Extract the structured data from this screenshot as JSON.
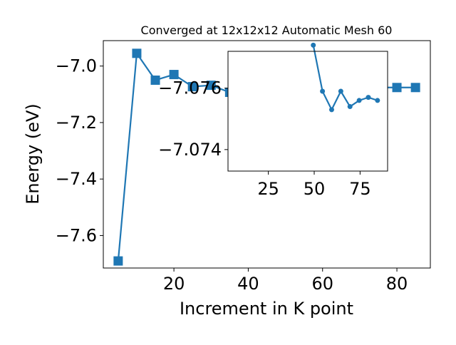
{
  "chart_data": {
    "type": "line",
    "title": "Converged at 12x12x12 Automatic Mesh 60",
    "xlabel": "Increment in K point",
    "ylabel": "Energy (eV)",
    "color": "#1f77b4",
    "grid": false,
    "main": {
      "xlim": [
        1,
        89
      ],
      "ylim": [
        -7.715,
        -6.91
      ],
      "xticks": [
        20,
        40,
        60,
        80
      ],
      "yticks": [
        -7.6,
        -7.4,
        -7.2,
        -7.0
      ],
      "xtick_labels": [
        "20",
        "40",
        "60",
        "80"
      ],
      "ytick_labels": [
        "−7.6",
        "−7.4",
        "−7.2",
        "−7.0"
      ],
      "marker": "square",
      "series": [
        {
          "x": [
            5,
            10,
            15,
            20,
            25,
            30,
            35,
            40,
            45,
            50,
            55,
            60,
            65,
            70,
            75,
            80,
            85
          ],
          "y": [
            -7.69,
            -6.955,
            -7.05,
            -7.03,
            -7.073,
            -7.068,
            -7.093,
            -7.085,
            -7.08,
            -7.078,
            -7.077,
            -7.076,
            -7.076,
            -7.077,
            -7.076,
            -7.076,
            -7.076
          ]
        }
      ]
    },
    "inset": {
      "xlim": [
        3,
        90
      ],
      "ylim": [
        -7.0733,
        -7.0772
      ],
      "xticks": [
        25,
        50,
        75
      ],
      "yticks": [
        -7.076,
        -7.074
      ],
      "xtick_labels": [
        "25",
        "50",
        "75"
      ],
      "ytick_labels": [
        "−7.076",
        "−7.074"
      ],
      "marker": "circle",
      "series": [
        {
          "x": [
            49.5,
            54.5,
            59.5,
            64.5,
            69.5,
            74.5,
            79.5,
            84.5
          ],
          "y": [
            -7.0774,
            -7.0759,
            -7.0753,
            -7.0759,
            -7.0754,
            -7.0756,
            -7.0757,
            -7.0756
          ]
        }
      ]
    }
  }
}
